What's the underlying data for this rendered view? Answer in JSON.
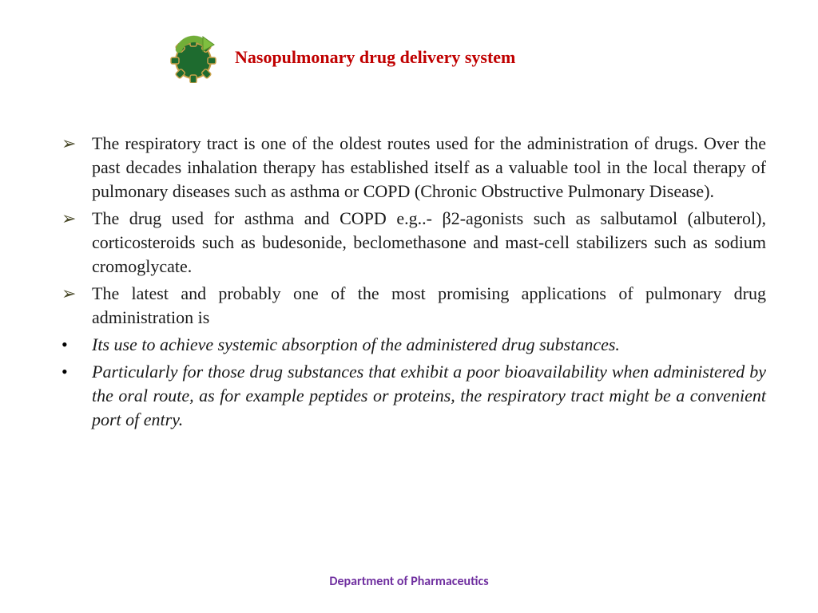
{
  "title": {
    "text": "Nasopulmonary drug delivery system",
    "color": "#c00000",
    "fontsize": 22
  },
  "logo": {
    "gear_color": "#1e6b2f",
    "gear_border": "#c9a14a",
    "arrow_color": "#7fbf3f",
    "arrow_border": "#5a8f2a"
  },
  "body": {
    "text_color": "#1a1a1a",
    "fontsize": 22,
    "line_height": 30,
    "items": [
      {
        "marker": "arrow",
        "italic": false,
        "text": "The respiratory tract is one of the oldest routes used for the administration of drugs. Over the past decades inhalation therapy has  established itself as a valuable tool in the local therapy of pulmonary diseases such as asthma or COPD (Chronic Obstructive Pulmonary  Disease)."
      },
      {
        "marker": "arrow",
        "italic": false,
        "text": "The drug used for asthma and COPD e.g..- β2-agonists such as  salbutamol (albuterol), corticosteroids such as  budesonide, beclomethasone and mast-cell stabilizers such  as sodium cromoglycate."
      },
      {
        "marker": "arrow",
        "italic": false,
        "text": "The latest and probably one of the most promising applications of pulmonary drug administration is"
      },
      {
        "marker": "dot",
        "italic": true,
        "text": "Its use to achieve systemic absorption of the administered  drug substances."
      },
      {
        "marker": "dot",
        "italic": true,
        "text": "Particularly for those drug substances that exhibit a poor bioavailability when administered by the oral route, as  for example peptides or proteins, the respiratory tract  might be a convenient port of entry."
      }
    ]
  },
  "footer": {
    "text": "Department of Pharmaceutics",
    "color": "#7030a0",
    "fontsize": 16
  },
  "markers": {
    "arrow_glyph": "➢",
    "dot_glyph": "•"
  }
}
